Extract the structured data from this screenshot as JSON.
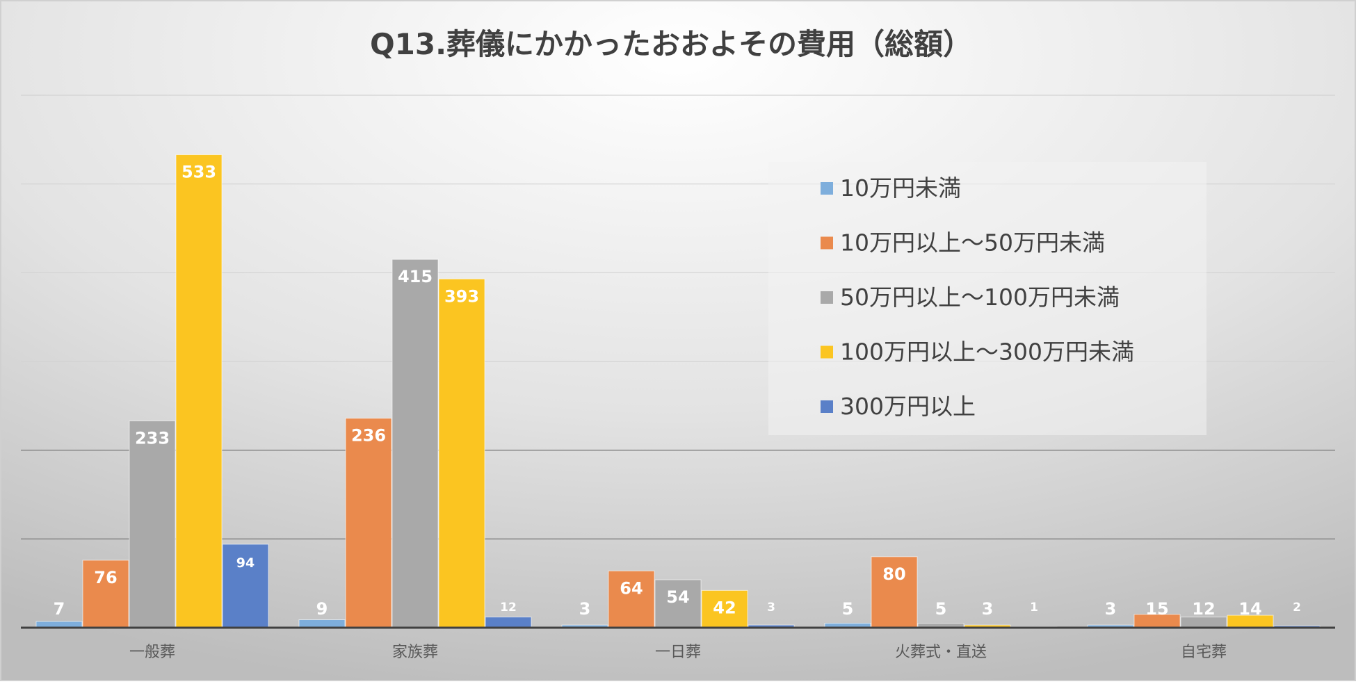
{
  "chart_data": {
    "type": "bar",
    "title": "Q13.葬儀にかかったおおよその費用（総額）",
    "xlabel": "",
    "ylabel": "",
    "ylim": [
      0,
      600
    ],
    "grid": true,
    "legend_position": "top-right",
    "categories": [
      "一般葬",
      "家族葬",
      "一日葬",
      "火葬式・直送",
      "自宅葬"
    ],
    "series": [
      {
        "name": "10万円未満",
        "color": "#7eaedc",
        "values": [
          7,
          9,
          3,
          5,
          3
        ]
      },
      {
        "name": "10万円以上～50万円未満",
        "color": "#ea8a4d",
        "values": [
          76,
          236,
          64,
          80,
          15
        ]
      },
      {
        "name": "50万円以上～100万円未満",
        "color": "#a9a9a9",
        "values": [
          233,
          415,
          54,
          5,
          12
        ]
      },
      {
        "name": "100万円以上～300万円未満",
        "color": "#fbc521",
        "values": [
          533,
          393,
          42,
          3,
          14
        ]
      },
      {
        "name": "300万円以上",
        "color": "#5a80c8",
        "values": [
          94,
          12,
          3,
          1,
          2
        ]
      }
    ]
  }
}
